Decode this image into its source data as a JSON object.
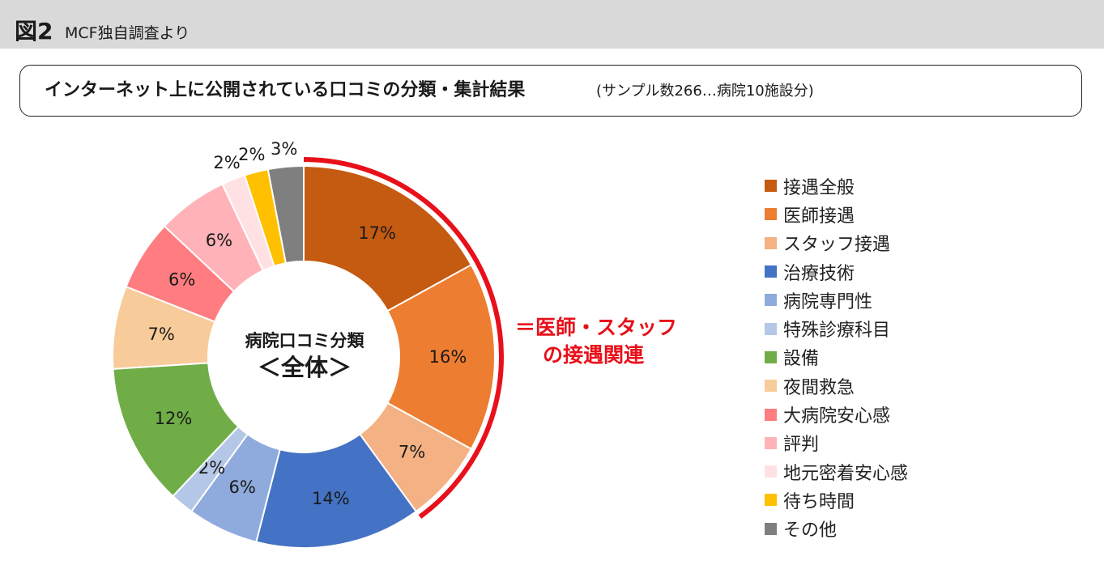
{
  "header": {
    "figure_label": "図2",
    "source": "MCF独自調査より"
  },
  "title": {
    "main": "インターネット上に公開されている口コミの分類・集計結果",
    "sub": "(サンプル数266…病院10施設分)"
  },
  "center": {
    "line1": "病院口コミ分類",
    "line2": "＜全体＞"
  },
  "annotation": {
    "line1": "＝医師・スタッフ",
    "line2": "の接遇関連",
    "color": "#e8101a",
    "covers": [
      "接遇全般",
      "医師接遇",
      "スタッフ接遇"
    ]
  },
  "chart_data": {
    "type": "pie",
    "donut": true,
    "start": "top",
    "direction": "clockwise",
    "legend_position": "right",
    "value_format": "{v}%",
    "slices": [
      {
        "label": "接遇全般",
        "value": 17,
        "color": "#c55a11"
      },
      {
        "label": "医師接遇",
        "value": 16,
        "color": "#ed7d31"
      },
      {
        "label": "スタッフ接遇",
        "value": 7,
        "color": "#f4b183"
      },
      {
        "label": "治療技術",
        "value": 14,
        "color": "#4472c4"
      },
      {
        "label": "病院専門性",
        "value": 6,
        "color": "#8faadc"
      },
      {
        "label": "特殊診療科目",
        "value": 2,
        "color": "#b4c7e7"
      },
      {
        "label": "設備",
        "value": 12,
        "color": "#70ad47"
      },
      {
        "label": "夜間救急",
        "value": 7,
        "color": "#f8cb9a"
      },
      {
        "label": "大病院安心感",
        "value": 6,
        "color": "#ff7c80"
      },
      {
        "label": "評判",
        "value": 6,
        "color": "#ffb3b8"
      },
      {
        "label": "地元密着安心感",
        "value": 2,
        "color": "#ffe1e4"
      },
      {
        "label": "待ち時間",
        "value": 2,
        "color": "#ffc000"
      },
      {
        "label": "その他",
        "value": 3,
        "color": "#7f7f7f"
      }
    ]
  }
}
